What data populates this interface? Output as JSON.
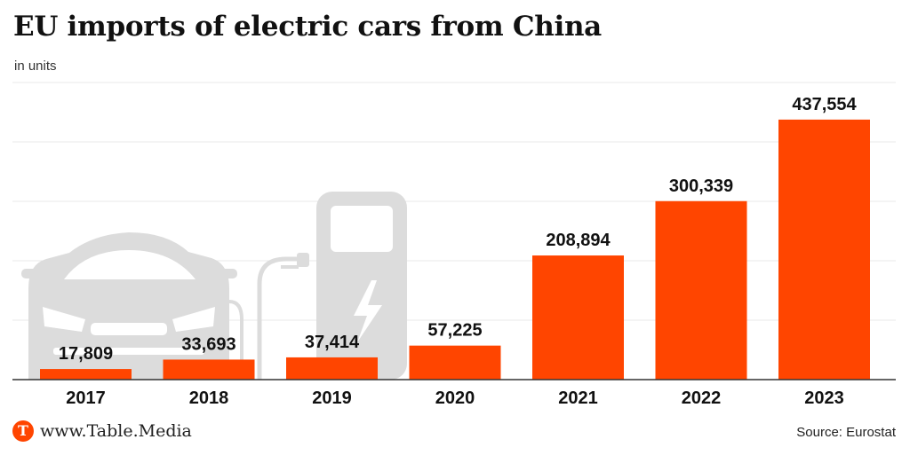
{
  "header": {
    "title": "EU imports of electric cars from China",
    "subtitle": "in units"
  },
  "footer": {
    "brand": "www.Table.Media",
    "logo_letter": "T",
    "source": "Source: Eurostat"
  },
  "colors": {
    "bar": "#ff4500",
    "decoration": "#dcdcdc",
    "grid": "#e9e9e9"
  },
  "decoration_icons": [
    "car-icon",
    "charging-station-icon"
  ],
  "chart_data": {
    "type": "bar",
    "title": "EU imports of electric cars from China",
    "subtitle": "in units",
    "categories": [
      "2017",
      "2018",
      "2019",
      "2020",
      "2021",
      "2022",
      "2023"
    ],
    "values": [
      17809,
      33693,
      37414,
      57225,
      208894,
      300339,
      437554
    ],
    "value_labels": [
      "17,809",
      "33,693",
      "37,414",
      "57,225",
      "208,894",
      "300,339",
      "437,554"
    ],
    "ylim": [
      0,
      500000
    ],
    "grid": true,
    "gridlines": [
      100000,
      200000,
      300000,
      400000,
      500000
    ]
  }
}
